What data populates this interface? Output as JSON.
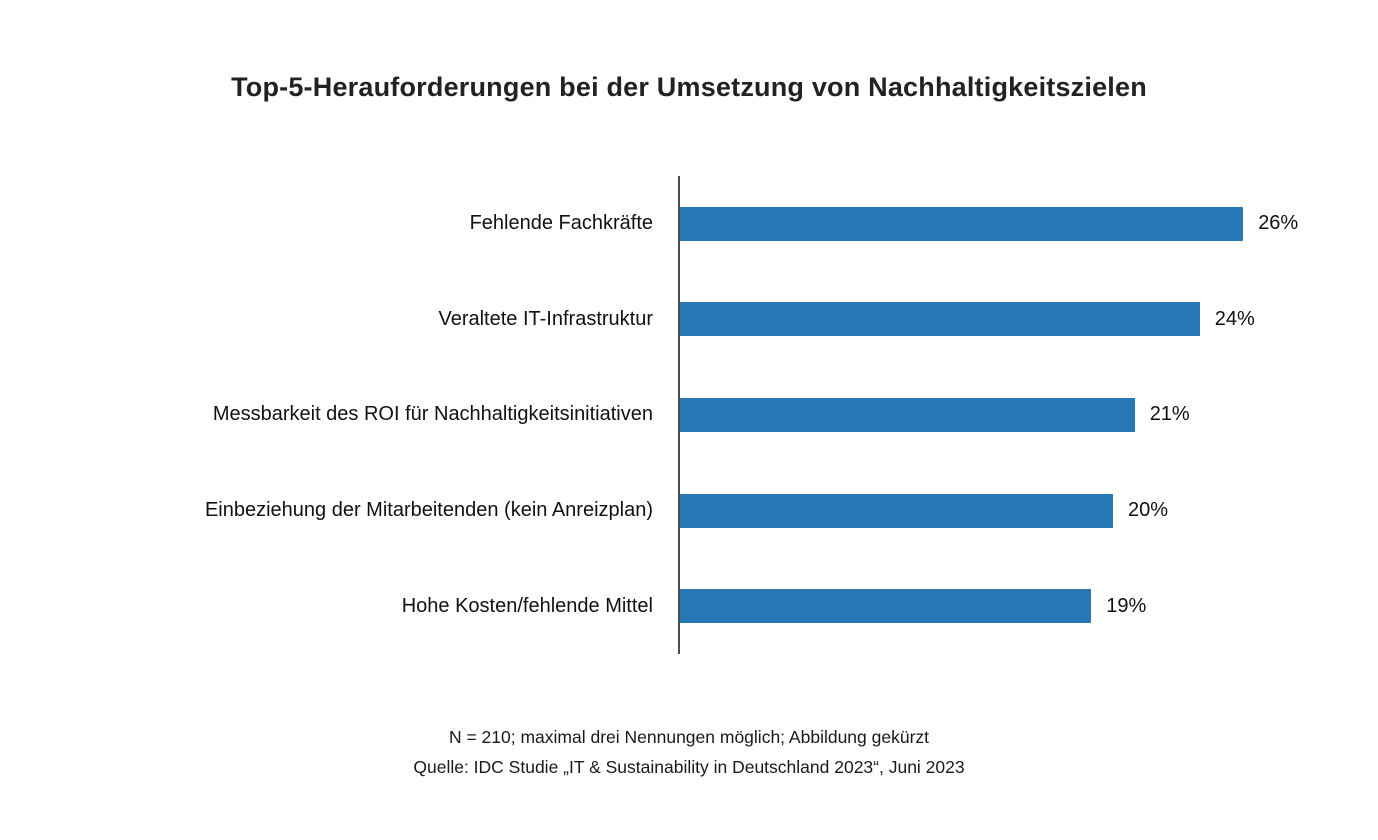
{
  "chart_data": {
    "type": "bar",
    "orientation": "horizontal",
    "title": "Top-5-Herauforderungen bei der Umsetzung von Nachhaltigkeitszielen",
    "categories": [
      "Fehlende Fachkräfte",
      "Veraltete IT-Infrastruktur",
      "Messbarkeit des ROI für Nachhaltigkeitsinitiativen",
      "Einbeziehung der Mitarbeitenden (kein Anreizplan)",
      "Hohe Kosten/fehlende Mittel"
    ],
    "values": [
      26,
      24,
      21,
      20,
      19
    ],
    "data_labels": [
      "26%",
      "24%",
      "21%",
      "20%",
      "19%"
    ],
    "xlabel": "",
    "ylabel": "",
    "xlim": [
      0,
      30
    ],
    "grid": false,
    "legend": false,
    "bar_color": "#2878B6",
    "axis_color": "#4d4d4d"
  },
  "footnotes": {
    "note": "N = 210; maximal drei Nennungen möglich; Abbildung gekürzt",
    "source": "Quelle: IDC Studie „IT & Sustainability in Deutschland 2023“, Juni 2023"
  }
}
